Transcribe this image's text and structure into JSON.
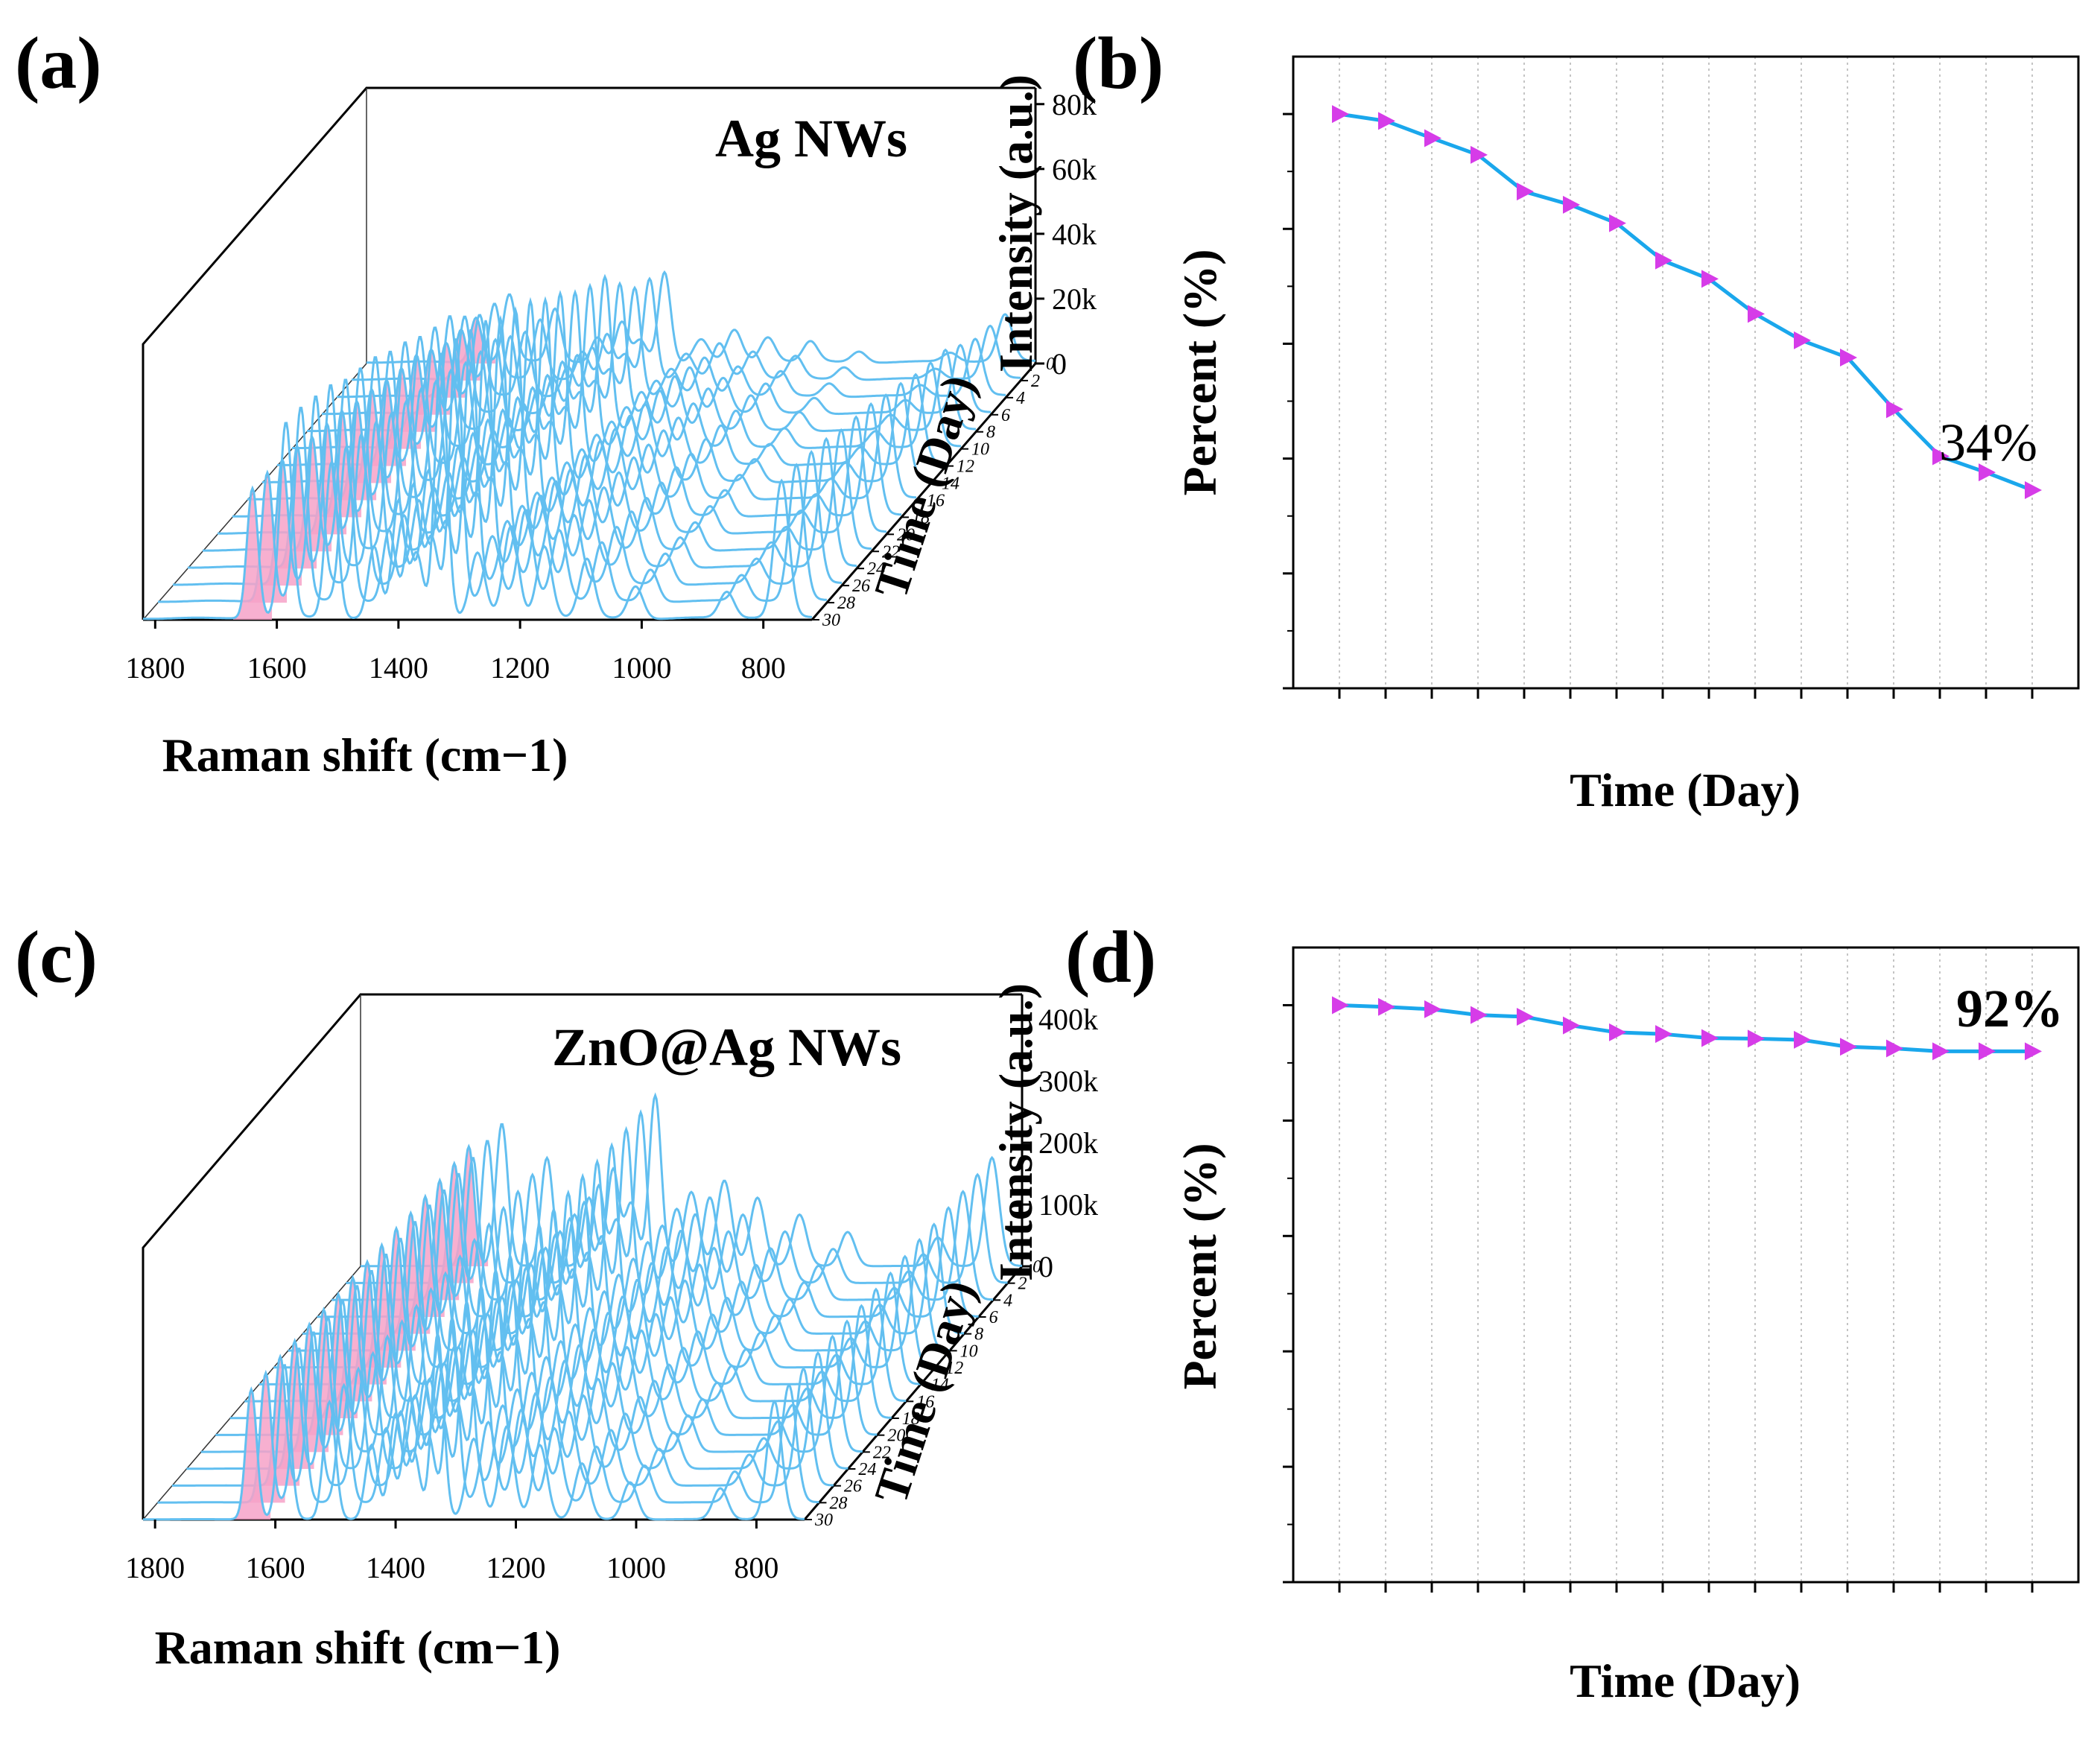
{
  "colors": {
    "line": "#1aa7ec",
    "marker": "#d63ce8",
    "spectrum": "#62bff0",
    "peak_fill": "#f6a2c8",
    "grid": "#c4c4c4",
    "axis": "#000000"
  },
  "chart_data": [
    {
      "panel": "(a)",
      "type": "line",
      "style": "3d-waterfall",
      "annotation": "Ag NWs",
      "xlabel": "Raman shift (cm−1)",
      "ylabel": "Intensity (a.u.)",
      "zlabel": "Time (Day)",
      "x_ticks": [
        "1800",
        "1600",
        "1400",
        "1200",
        "1000",
        "800"
      ],
      "x_range": [
        1820,
        720
      ],
      "y_ticks": [
        "0",
        "20k",
        "40k",
        "60k",
        "80k"
      ],
      "y_range": [
        0,
        85000
      ],
      "z_ticks": [
        "0",
        "2",
        "4",
        "6",
        "8",
        "10",
        "12",
        "14",
        "16",
        "18",
        "20",
        "22",
        "24",
        "26",
        "28",
        "30"
      ],
      "days": [
        0,
        2,
        4,
        6,
        8,
        10,
        12,
        14,
        16,
        18,
        20,
        22,
        24,
        26,
        28,
        30
      ],
      "peak_scale": [
        1.0,
        0.99,
        0.96,
        0.93,
        0.87,
        0.84,
        0.81,
        0.75,
        0.71,
        0.65,
        0.61,
        0.58,
        0.49,
        0.41,
        0.38,
        0.34
      ],
      "highlighted_peak_cm": 1640,
      "peaks_cm": [
        1640,
        1585,
        1510,
        1440,
        1400,
        1370,
        1330,
        1270,
        1215,
        1160,
        1090,
        1010,
        860,
        770
      ],
      "peak_heights_day0": [
        40000,
        60000,
        48000,
        22000,
        36000,
        20000,
        82000,
        20000,
        28000,
        22000,
        18000,
        10000,
        8000,
        42000
      ]
    },
    {
      "panel": "(b)",
      "type": "line",
      "title": "",
      "xlabel": "Time (Day)",
      "ylabel": "Percent (%)",
      "x_ticks": [
        "0",
        "2",
        "4",
        "6",
        "8",
        "10",
        "12",
        "14",
        "16",
        "18",
        "20",
        "22",
        "24",
        "26",
        "28",
        "30"
      ],
      "y_ticks": [
        "0.0",
        "0.2",
        "0.4",
        "0.6",
        "0.8",
        "1.0"
      ],
      "xlim": [
        -2,
        32
      ],
      "ylim": [
        0.0,
        1.1
      ],
      "grid": "vertical dotted",
      "series": [
        {
          "name": "Ag NWs",
          "x": [
            0,
            2,
            4,
            6,
            8,
            10,
            12,
            14,
            16,
            18,
            20,
            22,
            24,
            26,
            28,
            30
          ],
          "values": [
            1.0,
            0.988,
            0.958,
            0.929,
            0.865,
            0.842,
            0.81,
            0.745,
            0.713,
            0.652,
            0.606,
            0.576,
            0.486,
            0.404,
            0.376,
            0.345
          ]
        }
      ],
      "annotation": "34%"
    },
    {
      "panel": "(c)",
      "type": "line",
      "style": "3d-waterfall",
      "annotation": "ZnO@Ag NWs",
      "xlabel": "Raman shift (cm−1)",
      "ylabel": "Intensity (a.u.)",
      "zlabel": "Time (Day)",
      "x_ticks": [
        "1800",
        "1600",
        "1400",
        "1200",
        "1000",
        "800"
      ],
      "x_range": [
        1820,
        720
      ],
      "y_ticks": [
        "0",
        "100k",
        "200k",
        "300k",
        "400k"
      ],
      "y_range": [
        0,
        440000
      ],
      "z_ticks": [
        "0",
        "2",
        "4",
        "6",
        "8",
        "10",
        "12",
        "14",
        "16",
        "18",
        "20",
        "22",
        "24",
        "26",
        "28",
        "30"
      ],
      "days": [
        0,
        2,
        4,
        6,
        8,
        10,
        12,
        14,
        16,
        18,
        20,
        22,
        24,
        26,
        28,
        30
      ],
      "peak_scale": [
        1.0,
        0.997,
        0.993,
        0.983,
        0.98,
        0.965,
        0.953,
        0.95,
        0.943,
        0.942,
        0.94,
        0.928,
        0.925,
        0.92,
        0.92,
        0.92
      ],
      "highlighted_peak_cm": 1640,
      "peaks_cm": [
        1640,
        1585,
        1510,
        1440,
        1400,
        1370,
        1330,
        1270,
        1215,
        1160,
        1090,
        1010,
        860,
        770
      ],
      "peak_heights_day0": [
        210000,
        250000,
        190000,
        120000,
        170000,
        110000,
        300000,
        130000,
        150000,
        120000,
        90000,
        60000,
        50000,
        190000
      ]
    },
    {
      "panel": "(d)",
      "type": "line",
      "title": "",
      "xlabel": "Time (Day)",
      "ylabel": "Percent (%)",
      "x_ticks": [
        "0",
        "2",
        "4",
        "6",
        "8",
        "10",
        "12",
        "14",
        "16",
        "18",
        "20",
        "22",
        "24",
        "26",
        "28",
        "30"
      ],
      "y_ticks": [
        "0.0",
        "0.2",
        "0.4",
        "0.6",
        "0.8",
        "1.0"
      ],
      "xlim": [
        -2,
        32
      ],
      "ylim": [
        0.0,
        1.1
      ],
      "grid": "vertical dotted",
      "series": [
        {
          "name": "ZnO@Ag NWs",
          "x": [
            0,
            2,
            4,
            6,
            8,
            10,
            12,
            14,
            16,
            18,
            20,
            22,
            24,
            26,
            28,
            30
          ],
          "values": [
            1.0,
            0.997,
            0.993,
            0.983,
            0.98,
            0.965,
            0.953,
            0.95,
            0.943,
            0.942,
            0.94,
            0.928,
            0.925,
            0.92,
            0.92,
            0.92
          ]
        }
      ],
      "annotation": "92%"
    }
  ]
}
